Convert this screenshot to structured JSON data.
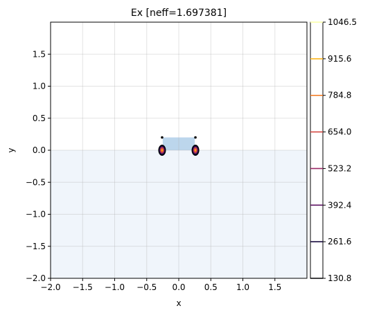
{
  "chart_data": [
    {
      "type": "contour",
      "title": "Ex [neff=1.697381]",
      "xlabel": "x",
      "ylabel": "y",
      "xlim": [
        -2.0,
        2.0
      ],
      "ylim": [
        -2.0,
        2.0
      ],
      "x_ticks": [
        "−2.0",
        "−1.5",
        "−1.0",
        "−0.5",
        "0.0",
        "0.5",
        "1.0",
        "1.5"
      ],
      "x_tick_values": [
        -2.0,
        -1.5,
        -1.0,
        -0.5,
        0.0,
        0.5,
        1.0,
        1.5
      ],
      "y_ticks": [
        "1.5",
        "1.0",
        "0.5",
        "0.0",
        "−0.5",
        "−1.0",
        "−1.5",
        "−2.0"
      ],
      "y_tick_values": [
        1.5,
        1.0,
        0.5,
        0.0,
        -0.5,
        -1.0,
        -1.5,
        -2.0
      ],
      "grid": true,
      "regions": [
        {
          "name": "substrate",
          "x": [
            -2.0,
            2.0
          ],
          "y": [
            -2.0,
            0.0
          ],
          "color": "#f0f5fb"
        },
        {
          "name": "core",
          "x": [
            -0.25,
            0.25
          ],
          "y": [
            0.0,
            0.2
          ],
          "color": "#bcd6ec"
        }
      ],
      "hotspots": [
        {
          "x": -0.26,
          "y": 0.0,
          "top_marker_y": 0.2
        },
        {
          "x": 0.26,
          "y": 0.0,
          "top_marker_y": 0.2
        }
      ],
      "levels": [
        130.8,
        261.6,
        392.4,
        523.2,
        654.0,
        784.8,
        915.6,
        1046.5
      ],
      "level_colors": [
        "#000004",
        "#1a0c40",
        "#5c1262",
        "#9a2865",
        "#d44842",
        "#f3761b",
        "#fbb51d",
        "#fcffa4"
      ]
    },
    {
      "type": "colorbar",
      "tick_labels": [
        "1046.5",
        "915.6",
        "784.8",
        "654.0",
        "523.2",
        "392.4",
        "261.6",
        "130.8"
      ],
      "tick_values": [
        1046.5,
        915.6,
        784.8,
        654.0,
        523.2,
        392.4,
        261.6,
        130.8
      ],
      "range": [
        130.8,
        1046.5
      ]
    }
  ]
}
